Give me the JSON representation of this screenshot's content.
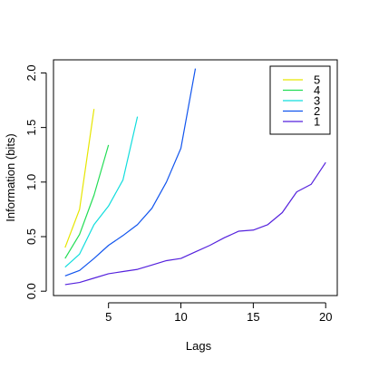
{
  "chart_data": {
    "type": "line",
    "title": "",
    "xlabel": "Lags",
    "ylabel": "Information (bits)",
    "xlim": [
      1.2,
      20.8
    ],
    "ylim": [
      -0.04,
      2.12
    ],
    "x_ticks": [
      5,
      10,
      15,
      20
    ],
    "y_ticks": [
      0.0,
      0.5,
      1.0,
      1.5,
      2.0
    ],
    "x_tick_labels": [
      "5",
      "10",
      "15",
      "20"
    ],
    "y_tick_labels": [
      "0.0",
      "0.5",
      "1.0",
      "1.5",
      "2.0"
    ],
    "grid": false,
    "legend_position": "top-right",
    "series": [
      {
        "name": "5",
        "color": "#e6e600",
        "x": [
          2,
          3,
          4
        ],
        "y": [
          0.4,
          0.75,
          1.67
        ]
      },
      {
        "name": "4",
        "color": "#22dd55",
        "x": [
          2,
          3,
          4,
          5
        ],
        "y": [
          0.3,
          0.52,
          0.88,
          1.34
        ]
      },
      {
        "name": "3",
        "color": "#11dddd",
        "x": [
          2,
          3,
          4,
          5,
          6,
          7
        ],
        "y": [
          0.22,
          0.34,
          0.61,
          0.78,
          1.02,
          1.6
        ]
      },
      {
        "name": "2",
        "color": "#1155ee",
        "x": [
          2,
          3,
          4,
          5,
          6,
          7,
          8,
          9,
          10,
          11
        ],
        "y": [
          0.14,
          0.19,
          0.3,
          0.42,
          0.51,
          0.61,
          0.76,
          1.0,
          1.31,
          2.04
        ]
      },
      {
        "name": "1",
        "color": "#5522dd",
        "x": [
          2,
          3,
          4,
          5,
          6,
          7,
          8,
          9,
          10,
          11,
          12,
          13,
          14,
          15,
          16,
          17,
          18,
          19,
          20
        ],
        "y": [
          0.06,
          0.08,
          0.12,
          0.16,
          0.18,
          0.2,
          0.24,
          0.28,
          0.3,
          0.36,
          0.42,
          0.49,
          0.55,
          0.56,
          0.61,
          0.72,
          0.91,
          0.98,
          1.18
        ]
      }
    ]
  }
}
